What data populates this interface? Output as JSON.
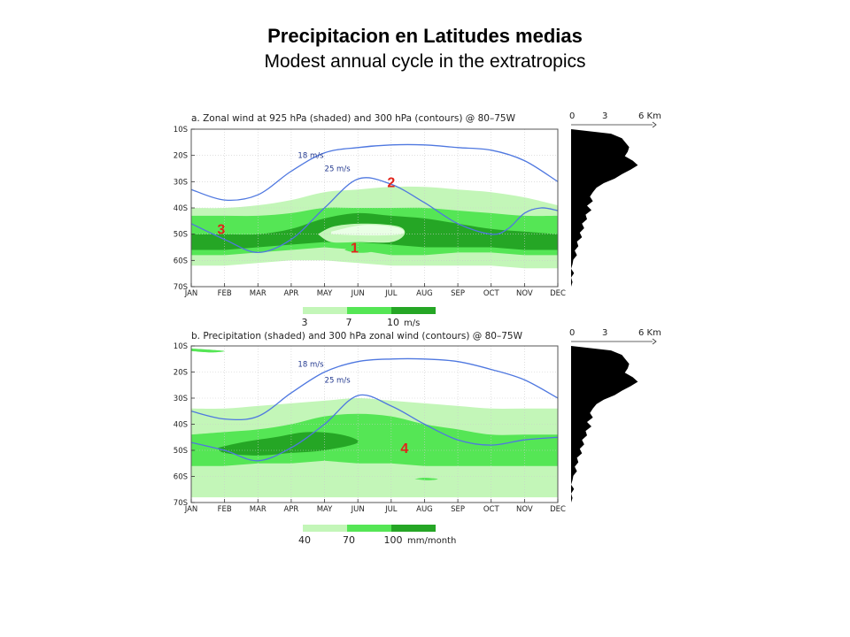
{
  "slide": {
    "title": "Precipitacion en Latitudes medias",
    "subtitle": "Modest annual cycle in the extratropics"
  },
  "colors": {
    "light_green": "#c3f6b8",
    "mid_green": "#55e655",
    "dark_green": "#25a625",
    "contour": "#4f78e0",
    "marker": "#e2231a",
    "terrain": "#000000"
  },
  "chart_data": [
    {
      "type": "heatmap",
      "title": "a. Zonal wind at 925 hPa (shaded) and 300 hPa (contours) @ 80–75W",
      "x_ticks": [
        "JAN",
        "FEB",
        "MAR",
        "APR",
        "MAY",
        "JUN",
        "JUL",
        "AUG",
        "SEP",
        "OCT",
        "NOV",
        "DEC"
      ],
      "y_ticks": [
        "10S",
        "20S",
        "30S",
        "40S",
        "50S",
        "60S",
        "70S"
      ],
      "ylim": [
        -70,
        -10
      ],
      "shading_levels": [
        3,
        7,
        10
      ],
      "shading_labels": [
        "3",
        "7",
        "10"
      ],
      "shading_unit": "m/s",
      "contour_labels": [
        "18 m/s",
        "25 m/s"
      ],
      "contour_levels": [
        18,
        25
      ],
      "markers": [
        "1",
        "2",
        "3"
      ],
      "bands": [
        {
          "level": 3,
          "month": [
            1,
            2,
            3,
            4,
            5,
            6,
            7,
            8,
            9,
            10,
            11,
            12
          ],
          "south": [
            -62,
            -62,
            -61,
            -60,
            -60,
            -61,
            -62,
            -62,
            -62,
            -62,
            -63,
            -63
          ],
          "north": [
            -40,
            -40,
            -39,
            -37,
            -34,
            -33,
            -32,
            -32,
            -33,
            -34,
            -36,
            -39
          ]
        },
        {
          "level": 7,
          "month": [
            1,
            2,
            3,
            4,
            5,
            6,
            7,
            8,
            9,
            10,
            11,
            12
          ],
          "south": [
            -58,
            -58,
            -57,
            -56,
            -55,
            -56,
            -58,
            -58,
            -57,
            -57,
            -58,
            -58
          ],
          "north": [
            -43,
            -43,
            -43,
            -42,
            -40,
            -40,
            -40,
            -40,
            -41,
            -42,
            -43,
            -43
          ]
        },
        {
          "level": 10,
          "month": [
            1,
            2,
            3,
            4,
            5,
            6,
            7,
            8,
            9,
            10,
            11,
            12
          ],
          "south": [
            -56,
            -56,
            -55,
            -54,
            -53,
            -53,
            -54,
            -55,
            -55,
            -55,
            -56,
            -56
          ],
          "north": [
            -50,
            -50,
            -50,
            -48,
            -44,
            -42,
            -43,
            -44,
            -46,
            -48,
            -49,
            -50
          ]
        }
      ],
      "contours": [
        {
          "level": 18,
          "month": [
            1.0,
            2.0,
            3.0,
            4.0,
            5.0,
            6.0,
            7.0,
            8.0,
            9.0,
            10.0,
            11.0,
            12.0
          ],
          "lat": [
            -33,
            -37,
            -35,
            -26,
            -19,
            -17,
            -16,
            -16,
            -17,
            -18,
            -22,
            -30
          ]
        },
        {
          "level": 25,
          "month": [
            1.0,
            2.0,
            3.0,
            4.0,
            5.0,
            6.0,
            7.0,
            8.0,
            9.0,
            10.0,
            10.5,
            11.0,
            11.5,
            12.0
          ],
          "lat": [
            -46,
            -52,
            -57,
            -52,
            -40,
            -29,
            -31,
            -38,
            -46,
            -50,
            -48,
            -42,
            -40,
            -41
          ]
        }
      ]
    },
    {
      "type": "heatmap",
      "title": "b. Precipitation (shaded) and 300 hPa zonal wind (contours) @ 80–75W",
      "x_ticks": [
        "JAN",
        "FEB",
        "MAR",
        "APR",
        "MAY",
        "JUN",
        "JUL",
        "AUG",
        "SEP",
        "OCT",
        "NOV",
        "DEC"
      ],
      "y_ticks": [
        "10S",
        "20S",
        "30S",
        "40S",
        "50S",
        "60S",
        "70S"
      ],
      "ylim": [
        -70,
        -10
      ],
      "shading_levels": [
        40,
        70,
        100
      ],
      "shading_labels": [
        "40",
        "70",
        "100"
      ],
      "shading_unit": "mm/month",
      "contour_labels": [
        "18 m/s",
        "25 m/s"
      ],
      "contour_levels": [
        18,
        25
      ],
      "markers": [
        "4"
      ],
      "bands": [
        {
          "level": 40,
          "month": [
            1,
            2,
            3,
            4,
            5,
            6,
            7,
            8,
            9,
            10,
            11,
            12
          ],
          "south": [
            -68,
            -68,
            -68,
            -68,
            -68,
            -68,
            -68,
            -68,
            -68,
            -68,
            -68,
            -68
          ],
          "north": [
            -34,
            -34,
            -33,
            -32,
            -31,
            -30,
            -31,
            -32,
            -33,
            -34,
            -34,
            -34
          ]
        },
        {
          "level": 70,
          "month": [
            1,
            2,
            3,
            4,
            5,
            6,
            7,
            8,
            9,
            10,
            11,
            12
          ],
          "south": [
            -56,
            -56,
            -55,
            -55,
            -54,
            -55,
            -55,
            -56,
            -56,
            -56,
            -56,
            -56
          ],
          "north": [
            -44,
            -43,
            -42,
            -40,
            -37,
            -36,
            -37,
            -40,
            -42,
            -44,
            -44,
            -44
          ]
        },
        {
          "level": 100,
          "month": [
            1.8,
            2.5,
            3.5,
            4.5,
            5.5,
            6.0,
            5.0,
            4.0,
            3.0,
            2.0,
            1.8
          ],
          "lat": [
            -49,
            -47,
            -45,
            -43,
            -44,
            -47,
            -50,
            -51,
            -52,
            -51,
            -49
          ]
        }
      ],
      "contours": [
        {
          "level": 18,
          "month": [
            1.0,
            2.0,
            3.0,
            4.0,
            5.0,
            6.0,
            7.0,
            8.0,
            9.0,
            10.0,
            11.0,
            12.0
          ],
          "lat": [
            -35,
            -38,
            -37,
            -28,
            -20,
            -16,
            -15,
            -15,
            -16,
            -19,
            -23,
            -30
          ]
        },
        {
          "level": 25,
          "month": [
            1.0,
            2.0,
            3.0,
            4.0,
            5.0,
            6.0,
            7.0,
            8.0,
            9.0,
            10.0,
            11.0,
            12.0
          ],
          "lat": [
            -47,
            -50,
            -54,
            -49,
            -40,
            -29,
            -33,
            -40,
            -46,
            -48,
            -46,
            -45
          ]
        }
      ]
    }
  ],
  "profiles": [
    {
      "tick_labels": [
        "0",
        "3",
        "6 Km"
      ],
      "unit": "Km"
    },
    {
      "tick_labels": [
        "0",
        "3",
        "6 Km"
      ],
      "unit": "Km"
    }
  ]
}
